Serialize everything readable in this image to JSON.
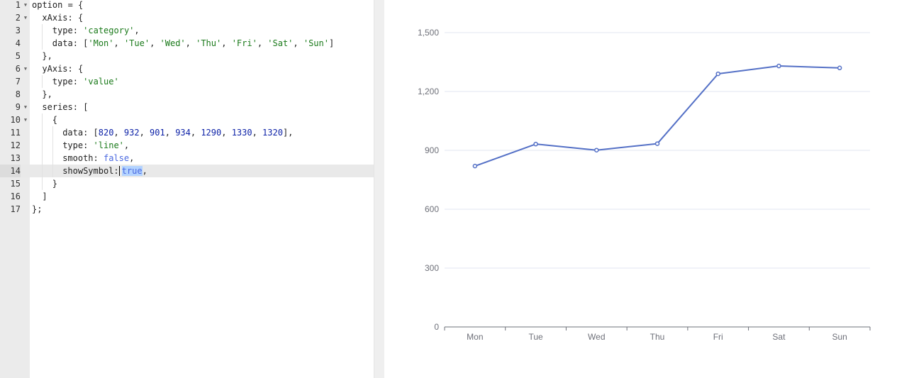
{
  "editor": {
    "lines": [
      {
        "n": "1",
        "fold": true,
        "indent": 0,
        "tokens": [
          [
            "p",
            "option = {"
          ]
        ]
      },
      {
        "n": "2",
        "fold": true,
        "indent": 1,
        "tokens": [
          [
            "p",
            "xAxis: {"
          ]
        ]
      },
      {
        "n": "3",
        "fold": false,
        "indent": 2,
        "tokens": [
          [
            "p",
            "type: "
          ],
          [
            "s",
            "'category'"
          ],
          [
            "p",
            ","
          ]
        ]
      },
      {
        "n": "4",
        "fold": false,
        "indent": 2,
        "tokens": [
          [
            "p",
            "data: ["
          ],
          [
            "s",
            "'Mon'"
          ],
          [
            "p",
            ", "
          ],
          [
            "s",
            "'Tue'"
          ],
          [
            "p",
            ", "
          ],
          [
            "s",
            "'Wed'"
          ],
          [
            "p",
            ", "
          ],
          [
            "s",
            "'Thu'"
          ],
          [
            "p",
            ", "
          ],
          [
            "s",
            "'Fri'"
          ],
          [
            "p",
            ", "
          ],
          [
            "s",
            "'Sat'"
          ],
          [
            "p",
            ", "
          ],
          [
            "s",
            "'Sun'"
          ],
          [
            "p",
            "]"
          ]
        ]
      },
      {
        "n": "5",
        "fold": false,
        "indent": 1,
        "tokens": [
          [
            "p",
            "},"
          ]
        ]
      },
      {
        "n": "6",
        "fold": true,
        "indent": 1,
        "tokens": [
          [
            "p",
            "yAxis: {"
          ]
        ]
      },
      {
        "n": "7",
        "fold": false,
        "indent": 2,
        "tokens": [
          [
            "p",
            "type: "
          ],
          [
            "s",
            "'value'"
          ]
        ]
      },
      {
        "n": "8",
        "fold": false,
        "indent": 1,
        "tokens": [
          [
            "p",
            "},"
          ]
        ]
      },
      {
        "n": "9",
        "fold": true,
        "indent": 1,
        "tokens": [
          [
            "p",
            "series: ["
          ]
        ]
      },
      {
        "n": "10",
        "fold": true,
        "indent": 2,
        "tokens": [
          [
            "p",
            "{"
          ]
        ]
      },
      {
        "n": "11",
        "fold": false,
        "indent": 3,
        "tokens": [
          [
            "p",
            "data: ["
          ],
          [
            "n",
            "820"
          ],
          [
            "p",
            ", "
          ],
          [
            "n",
            "932"
          ],
          [
            "p",
            ", "
          ],
          [
            "n",
            "901"
          ],
          [
            "p",
            ", "
          ],
          [
            "n",
            "934"
          ],
          [
            "p",
            ", "
          ],
          [
            "n",
            "1290"
          ],
          [
            "p",
            ", "
          ],
          [
            "n",
            "1330"
          ],
          [
            "p",
            ", "
          ],
          [
            "n",
            "1320"
          ],
          [
            "p",
            "],"
          ]
        ]
      },
      {
        "n": "12",
        "fold": false,
        "indent": 3,
        "tokens": [
          [
            "p",
            "type: "
          ],
          [
            "s",
            "'line'"
          ],
          [
            "p",
            ","
          ]
        ]
      },
      {
        "n": "13",
        "fold": false,
        "indent": 3,
        "tokens": [
          [
            "p",
            "smooth: "
          ],
          [
            "k",
            "false"
          ],
          [
            "p",
            ","
          ]
        ]
      },
      {
        "n": "14",
        "fold": false,
        "indent": 3,
        "active": true,
        "tokens": [
          [
            "p",
            "showSymbol:"
          ],
          [
            "c",
            ""
          ],
          [
            "sel",
            "true"
          ],
          [
            "p",
            ","
          ]
        ]
      },
      {
        "n": "15",
        "fold": false,
        "indent": 2,
        "tokens": [
          [
            "p",
            "}"
          ]
        ]
      },
      {
        "n": "16",
        "fold": false,
        "indent": 1,
        "tokens": [
          [
            "p",
            "]"
          ]
        ]
      },
      {
        "n": "17",
        "fold": false,
        "indent": 0,
        "tokens": [
          [
            "p",
            "};"
          ]
        ]
      }
    ],
    "fold_icon": "caret-down-icon",
    "cursor_icon": "text-cursor-icon"
  },
  "chart_data": {
    "type": "line",
    "categories": [
      "Mon",
      "Tue",
      "Wed",
      "Thu",
      "Fri",
      "Sat",
      "Sun"
    ],
    "series": [
      {
        "values": [
          820,
          932,
          901,
          934,
          1290,
          1330,
          1320
        ],
        "color": "#5470c6"
      }
    ],
    "yticks": [
      0,
      300,
      600,
      900,
      1200,
      1500
    ],
    "ytick_labels": [
      "0",
      "300",
      "600",
      "900",
      "1,200",
      "1,500"
    ],
    "ylim": [
      0,
      1500
    ],
    "show_symbol": true,
    "smooth": false,
    "grid": true,
    "grid_color": "#e0e6f1",
    "axis_color": "#6e7079"
  }
}
